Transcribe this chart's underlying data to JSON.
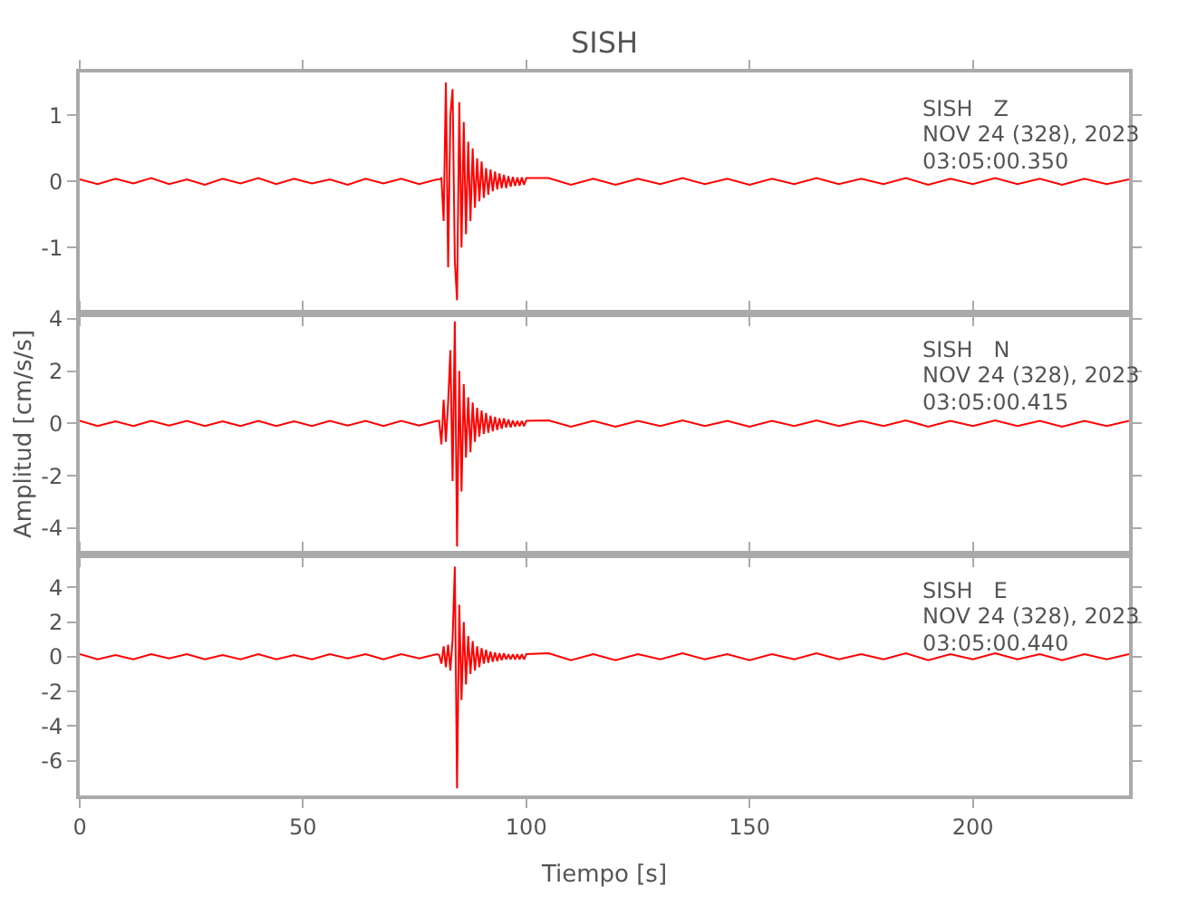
{
  "chart_data": [
    {
      "type": "line",
      "title": "SISH",
      "tick_labels": "y",
      "x": [
        0,
        4,
        8,
        12,
        16,
        20,
        24,
        28,
        32,
        36,
        40,
        44,
        48,
        52,
        56,
        60,
        64,
        68,
        72,
        76,
        80,
        80.5,
        81,
        81.5,
        82,
        82.5,
        83,
        83.5,
        84,
        84.5,
        85,
        85.5,
        86,
        86.5,
        87,
        87.5,
        88,
        88.5,
        89,
        89.5,
        90,
        90.5,
        91,
        91.5,
        92,
        92.5,
        93,
        93.5,
        94,
        94.5,
        95,
        95.5,
        96,
        96.5,
        97,
        97.5,
        98,
        98.5,
        99,
        99.5,
        100,
        105,
        110,
        115,
        120,
        125,
        130,
        135,
        140,
        145,
        150,
        155,
        160,
        165,
        170,
        175,
        180,
        185,
        190,
        195,
        200,
        205,
        210,
        215,
        220,
        225,
        230,
        235
      ],
      "series": [
        {
          "color": "#ff0000",
          "values": [
            0.03,
            -0.04,
            0.04,
            -0.03,
            0.05,
            -0.04,
            0.03,
            -0.05,
            0.04,
            -0.03,
            0.05,
            -0.04,
            0.04,
            -0.03,
            0.03,
            -0.05,
            0.04,
            -0.03,
            0.04,
            -0.04,
            0.03,
            0.03,
            0.05,
            -0.6,
            1.5,
            -1.3,
            1.0,
            1.4,
            -1.2,
            -1.8,
            1.2,
            -1.0,
            0.9,
            -0.8,
            0.6,
            -0.6,
            0.5,
            -0.4,
            0.35,
            -0.3,
            0.3,
            -0.25,
            0.2,
            -0.2,
            0.18,
            -0.15,
            0.15,
            -0.12,
            0.12,
            -0.1,
            0.1,
            -0.1,
            0.08,
            -0.08,
            0.07,
            -0.07,
            0.06,
            -0.06,
            0.06,
            -0.05,
            0.05,
            0.05,
            -0.05,
            0.04,
            -0.05,
            0.04,
            -0.04,
            0.05,
            -0.04,
            0.04,
            -0.05,
            0.04,
            -0.04,
            0.05,
            -0.04,
            0.04,
            -0.04,
            0.05,
            -0.05,
            0.04,
            -0.04,
            0.05,
            -0.04,
            0.04,
            -0.05,
            0.04,
            -0.04,
            0.03
          ]
        }
      ],
      "xlim": [
        0,
        235
      ],
      "xticks": [
        0,
        50,
        100,
        150,
        200
      ],
      "ylim": [
        -2,
        1.65
      ],
      "yticks": [
        -1,
        0,
        1
      ],
      "annotations": [
        "SISH   Z",
        "NOV 24 (328), 2023",
        "03:05:00.350"
      ]
    },
    {
      "type": "line",
      "ylabel": "Amplitud [cm/s/s]",
      "tick_labels": "y",
      "x": [
        0,
        4,
        8,
        12,
        16,
        20,
        24,
        28,
        32,
        36,
        40,
        44,
        48,
        52,
        56,
        60,
        64,
        68,
        72,
        76,
        80,
        80.5,
        81,
        81.5,
        82,
        82.5,
        83,
        83.5,
        84,
        84.5,
        85,
        85.5,
        86,
        86.5,
        87,
        87.5,
        88,
        88.5,
        89,
        89.5,
        90,
        90.5,
        91,
        91.5,
        92,
        92.5,
        93,
        93.5,
        94,
        94.5,
        95,
        95.5,
        96,
        96.5,
        97,
        97.5,
        98,
        98.5,
        99,
        99.5,
        100,
        105,
        110,
        115,
        120,
        125,
        130,
        135,
        140,
        145,
        150,
        155,
        160,
        165,
        170,
        175,
        180,
        185,
        190,
        195,
        200,
        205,
        210,
        215,
        220,
        225,
        230,
        235
      ],
      "series": [
        {
          "color": "#ff0000",
          "values": [
            0.1,
            -0.1,
            0.08,
            -0.1,
            0.1,
            -0.08,
            0.1,
            -0.1,
            0.08,
            -0.1,
            0.1,
            -0.1,
            0.08,
            -0.1,
            0.1,
            -0.08,
            0.1,
            -0.1,
            0.1,
            -0.08,
            0.1,
            0.1,
            -0.8,
            0.9,
            -0.7,
            0.8,
            2.8,
            -2.2,
            3.9,
            -4.7,
            2.0,
            -2.6,
            1.5,
            -1.3,
            1.0,
            -1.1,
            0.8,
            -0.7,
            0.6,
            -0.5,
            0.5,
            -0.4,
            0.4,
            -0.35,
            0.3,
            -0.3,
            0.25,
            -0.25,
            0.2,
            -0.2,
            0.2,
            -0.15,
            0.15,
            -0.15,
            0.12,
            -0.12,
            0.1,
            -0.1,
            0.1,
            -0.1,
            0.1,
            0.12,
            -0.12,
            0.1,
            -0.12,
            0.1,
            -0.1,
            0.12,
            -0.1,
            0.1,
            -0.12,
            0.1,
            -0.1,
            0.12,
            -0.1,
            0.1,
            -0.1,
            0.12,
            -0.12,
            0.1,
            -0.1,
            0.12,
            -0.1,
            0.1,
            -0.12,
            0.1,
            -0.1,
            0.1
          ]
        }
      ],
      "xlim": [
        0,
        235
      ],
      "xticks": [
        0,
        50,
        100,
        150,
        200
      ],
      "ylim": [
        -5,
        4.2
      ],
      "yticks": [
        -4,
        -2,
        0,
        2,
        4
      ],
      "annotations": [
        "SISH   N",
        "NOV 24 (328), 2023",
        "03:05:00.415"
      ]
    },
    {
      "type": "line",
      "xlabel": "Tiempo [s]",
      "x": [
        0,
        4,
        8,
        12,
        16,
        20,
        24,
        28,
        32,
        36,
        40,
        44,
        48,
        52,
        56,
        60,
        64,
        68,
        72,
        76,
        80,
        80.5,
        81,
        81.5,
        82,
        82.5,
        83,
        83.5,
        84,
        84.5,
        85,
        85.5,
        86,
        86.5,
        87,
        87.5,
        88,
        88.5,
        89,
        89.5,
        90,
        90.5,
        91,
        91.5,
        92,
        92.5,
        93,
        93.5,
        94,
        94.5,
        95,
        95.5,
        96,
        96.5,
        97,
        97.5,
        98,
        98.5,
        99,
        99.5,
        100,
        105,
        110,
        115,
        120,
        125,
        130,
        135,
        140,
        145,
        150,
        155,
        160,
        165,
        170,
        175,
        180,
        185,
        190,
        195,
        200,
        205,
        210,
        215,
        220,
        225,
        230,
        235
      ],
      "series": [
        {
          "color": "#ff0000",
          "values": [
            0.15,
            -0.15,
            0.1,
            -0.15,
            0.15,
            -0.1,
            0.15,
            -0.15,
            0.1,
            -0.15,
            0.15,
            -0.15,
            0.1,
            -0.15,
            0.15,
            -0.1,
            0.15,
            -0.15,
            0.15,
            -0.1,
            0.15,
            0.1,
            -0.4,
            0.6,
            -0.6,
            0.7,
            -0.8,
            1.0,
            5.2,
            -7.6,
            3.0,
            -2.5,
            2.0,
            -1.6,
            1.2,
            -1.0,
            0.9,
            -0.8,
            0.6,
            -0.6,
            0.5,
            -0.4,
            0.4,
            -0.35,
            0.3,
            -0.3,
            0.25,
            -0.25,
            0.2,
            -0.2,
            0.2,
            -0.15,
            0.15,
            -0.15,
            0.15,
            -0.15,
            0.15,
            -0.15,
            0.15,
            -0.15,
            0.15,
            0.2,
            -0.2,
            0.15,
            -0.2,
            0.15,
            -0.15,
            0.2,
            -0.15,
            0.15,
            -0.2,
            0.15,
            -0.15,
            0.2,
            -0.15,
            0.15,
            -0.15,
            0.2,
            -0.2,
            0.15,
            -0.15,
            0.2,
            -0.15,
            0.15,
            -0.2,
            0.15,
            -0.15,
            0.15
          ]
        }
      ],
      "xlim": [
        0,
        235
      ],
      "xticks": [
        0,
        50,
        100,
        150,
        200
      ],
      "ylim": [
        -8,
        5.9
      ],
      "yticks": [
        -6,
        -4,
        -2,
        0,
        2,
        4
      ],
      "annotations": [
        "SISH   E",
        "NOV 24 (328), 2023",
        "03:05:00.440"
      ]
    }
  ]
}
